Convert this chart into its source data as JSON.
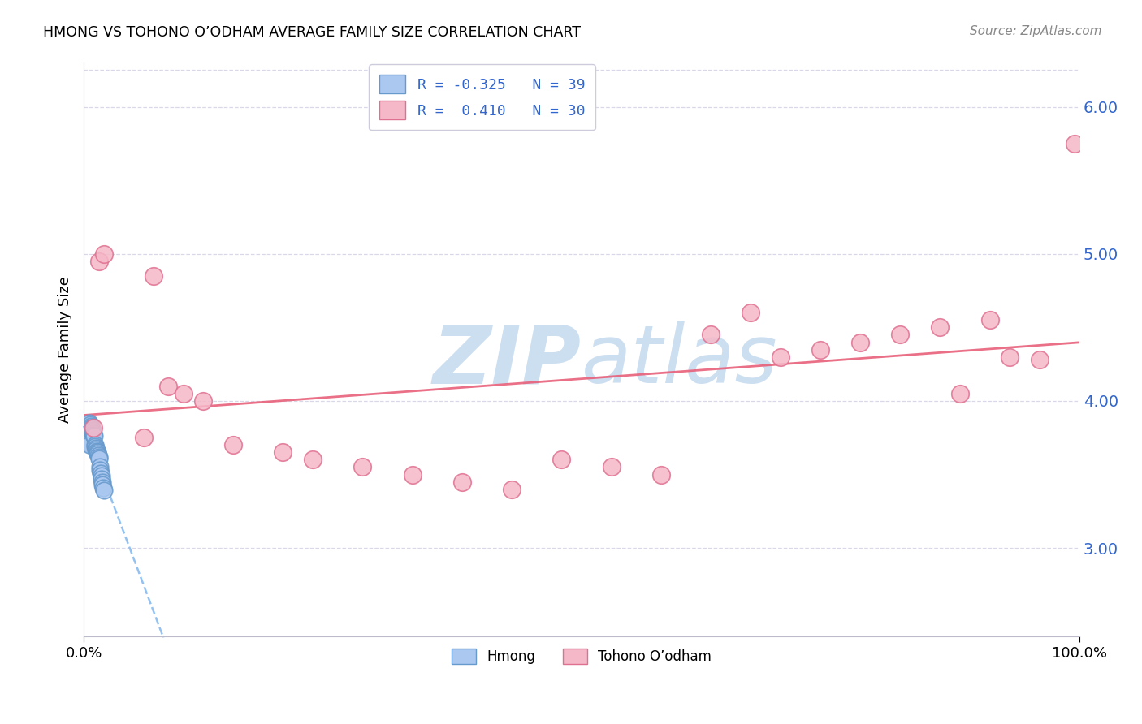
{
  "title": "HMONG VS TOHONO O’ODHAM AVERAGE FAMILY SIZE CORRELATION CHART",
  "source": "Source: ZipAtlas.com",
  "ylabel": "Average Family Size",
  "legend_label1": "Hmong",
  "legend_label2": "Tohono O’odham",
  "R1": -0.325,
  "N1": 39,
  "R2": 0.41,
  "N2": 30,
  "hmong_x": [
    0.1,
    0.15,
    0.2,
    0.25,
    0.3,
    0.35,
    0.4,
    0.45,
    0.5,
    0.55,
    0.6,
    0.65,
    0.7,
    0.75,
    0.8,
    0.85,
    0.9,
    0.95,
    1.0,
    1.05,
    1.1,
    1.15,
    1.2,
    1.25,
    1.3,
    1.35,
    1.4,
    1.45,
    1.5,
    1.55,
    1.6,
    1.65,
    1.7,
    1.75,
    1.8,
    1.85,
    1.9,
    1.95,
    2.0
  ],
  "hmong_y": [
    3.82,
    3.8,
    3.78,
    3.76,
    3.75,
    3.74,
    3.73,
    3.72,
    3.71,
    3.7,
    3.85,
    3.84,
    3.83,
    3.82,
    3.81,
    3.8,
    3.79,
    3.78,
    3.77,
    3.76,
    3.7,
    3.69,
    3.68,
    3.67,
    3.66,
    3.65,
    3.64,
    3.63,
    3.62,
    3.61,
    3.55,
    3.53,
    3.51,
    3.49,
    3.47,
    3.45,
    3.43,
    3.41,
    3.39
  ],
  "tohono_x": [
    1.0,
    1.5,
    2.0,
    6.0,
    7.0,
    8.5,
    10.0,
    12.0,
    15.0,
    20.0,
    23.0,
    28.0,
    33.0,
    38.0,
    43.0,
    48.0,
    53.0,
    58.0,
    63.0,
    67.0,
    70.0,
    74.0,
    78.0,
    82.0,
    86.0,
    88.0,
    91.0,
    93.0,
    96.0,
    99.5
  ],
  "tohono_y": [
    3.82,
    4.95,
    5.0,
    3.75,
    4.85,
    4.1,
    4.05,
    4.0,
    3.7,
    3.65,
    3.6,
    3.55,
    3.5,
    3.45,
    3.4,
    3.6,
    3.55,
    3.5,
    4.45,
    4.6,
    4.3,
    4.35,
    4.4,
    4.45,
    4.5,
    4.05,
    4.55,
    4.3,
    4.28,
    5.75
  ],
  "hmong_color": "#aac8f0",
  "tohono_color": "#f5b8c8",
  "hmong_edge_color": "#6699cc",
  "tohono_edge_color": "#e07090",
  "regression_hmong_color": "#88bbee",
  "regression_tohono_color": "#e8607a",
  "watermark_color": "#ccdff0",
  "xlim": [
    0,
    100
  ],
  "ylim_bottom": 2.4,
  "ylim_top": 6.3,
  "yticks": [
    3.0,
    4.0,
    5.0,
    6.0
  ],
  "background_color": "#ffffff",
  "grid_color": "#d8d8e8"
}
